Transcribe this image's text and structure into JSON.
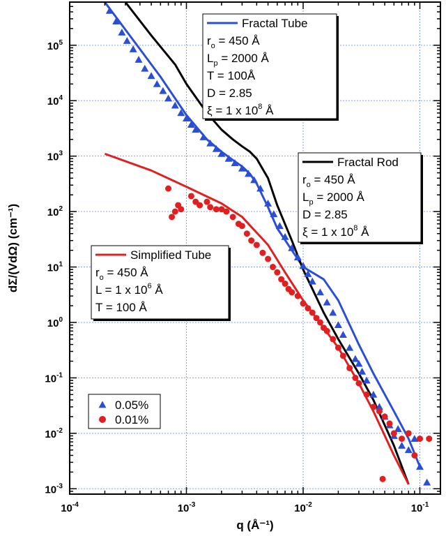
{
  "chart_data": {
    "type": "scatter",
    "x_scale": "log",
    "y_scale": "log",
    "xlim": [
      0.0001,
      0.15
    ],
    "ylim": [
      0.0008,
      600000
    ],
    "grid": true,
    "xlabel": "q (Å⁻¹)",
    "ylabel": "dΣ/(VdΩ) (cm⁻¹)",
    "x_ticks": [
      {
        "value": 0.0001,
        "base": "10",
        "exp": "-4"
      },
      {
        "value": 0.001,
        "base": "10",
        "exp": "-3"
      },
      {
        "value": 0.01,
        "base": "10",
        "exp": "-2"
      },
      {
        "value": 0.1,
        "base": "10",
        "exp": "-1"
      }
    ],
    "y_ticks": [
      {
        "value": 0.001,
        "base": "10",
        "exp": "-3"
      },
      {
        "value": 0.01,
        "base": "10",
        "exp": "-2"
      },
      {
        "value": 0.1,
        "base": "10",
        "exp": "-1"
      },
      {
        "value": 1,
        "base": "10",
        "exp": "0"
      },
      {
        "value": 10,
        "base": "10",
        "exp": "1"
      },
      {
        "value": 100,
        "base": "10",
        "exp": "2"
      },
      {
        "value": 1000,
        "base": "10",
        "exp": "3"
      },
      {
        "value": 10000,
        "base": "10",
        "exp": "4"
      },
      {
        "value": 100000,
        "base": "10",
        "exp": "5"
      }
    ],
    "series": [
      {
        "name": "Fractal Tube",
        "kind": "line",
        "color": "#2a4fd6",
        "x": [
          0.0002,
          0.0004,
          0.0006,
          0.0008,
          0.001,
          0.0015,
          0.002,
          0.0025,
          0.003,
          0.0035,
          0.004,
          0.005,
          0.006,
          0.008,
          0.01,
          0.015,
          0.02,
          0.03,
          0.04,
          0.06,
          0.08,
          0.1
        ],
        "y": [
          600000,
          85000,
          27000,
          11000,
          5500,
          2000,
          1200,
          850,
          650,
          480,
          320,
          120,
          50,
          20,
          10,
          6,
          2.5,
          0.4,
          0.12,
          0.025,
          0.008,
          0.0025
        ]
      },
      {
        "name": "Fractal Rod",
        "kind": "line",
        "color": "#000000",
        "x": [
          0.0003,
          0.0005,
          0.0008,
          0.001,
          0.0015,
          0.002,
          0.0025,
          0.003,
          0.0035,
          0.004,
          0.005,
          0.006,
          0.008,
          0.01,
          0.015,
          0.02,
          0.03,
          0.04,
          0.06,
          0.08
        ],
        "y": [
          600000,
          150000,
          45000,
          20000,
          6000,
          3000,
          2000,
          1500,
          1200,
          900,
          400,
          130,
          30,
          9,
          1.5,
          0.5,
          0.12,
          0.04,
          0.006,
          0.0012
        ]
      },
      {
        "name": "Simplified Tube",
        "kind": "line",
        "color": "#e02020",
        "x": [
          0.0002,
          0.0005,
          0.001,
          0.002,
          0.003,
          0.005,
          0.007,
          0.01,
          0.015,
          0.02,
          0.03,
          0.04,
          0.06,
          0.08
        ],
        "y": [
          1100,
          550,
          280,
          140,
          80,
          25,
          8,
          2.5,
          0.8,
          0.35,
          0.08,
          0.025,
          0.004,
          0.0012
        ]
      },
      {
        "name": "0.05%",
        "kind": "markers",
        "marker": "triangle",
        "color": "#2a4fd6",
        "x": [
          0.00022,
          0.00025,
          0.00028,
          0.00031,
          0.00035,
          0.00039,
          0.00044,
          0.0005,
          0.00056,
          0.00063,
          0.0007,
          0.0008,
          0.0009,
          0.001,
          0.0011,
          0.0012,
          0.0014,
          0.0016,
          0.0018,
          0.002,
          0.0023,
          0.0026,
          0.003,
          0.0034,
          0.0038,
          0.0043,
          0.005,
          0.0056,
          0.0063,
          0.007,
          0.008,
          0.009,
          0.01,
          0.011,
          0.012,
          0.014,
          0.016,
          0.018,
          0.02,
          0.022,
          0.025,
          0.028,
          0.03,
          0.032,
          0.035,
          0.04,
          0.045,
          0.05,
          0.055,
          0.06,
          0.065,
          0.07,
          0.08,
          0.09,
          0.1,
          0.115
        ],
        "y": [
          420000,
          270000,
          170000,
          120000,
          85000,
          55000,
          38000,
          28000,
          20000,
          15000,
          11000,
          8200,
          6000,
          4800,
          3700,
          3000,
          2200,
          1700,
          1350,
          1100,
          900,
          750,
          600,
          480,
          370,
          260,
          140,
          90,
          55,
          35,
          22,
          15,
          10.5,
          7.5,
          5.5,
          3.5,
          2.3,
          1.5,
          0.9,
          0.6,
          0.35,
          0.22,
          0.18,
          0.13,
          0.09,
          0.05,
          0.03,
          0.02,
          0.014,
          0.009,
          0.012,
          0.006,
          0.005,
          0.008,
          0.0025,
          0.0013
        ]
      },
      {
        "name": "0.01%",
        "kind": "markers",
        "marker": "circle",
        "color": "#e02020",
        "x": [
          0.0007,
          0.00075,
          0.0008,
          0.00085,
          0.0009,
          0.0011,
          0.0012,
          0.0013,
          0.0015,
          0.0016,
          0.0018,
          0.002,
          0.0022,
          0.0025,
          0.0028,
          0.003,
          0.0033,
          0.0036,
          0.004,
          0.0045,
          0.005,
          0.0055,
          0.006,
          0.0065,
          0.007,
          0.0075,
          0.008,
          0.009,
          0.01,
          0.011,
          0.012,
          0.013,
          0.014,
          0.015,
          0.016,
          0.018,
          0.02,
          0.022,
          0.025,
          0.028,
          0.03,
          0.035,
          0.04,
          0.045,
          0.05,
          0.055,
          0.06,
          0.07,
          0.08,
          0.09,
          0.1,
          0.12,
          0.048
        ],
        "y": [
          260,
          80,
          100,
          130,
          110,
          190,
          150,
          130,
          150,
          120,
          110,
          110,
          100,
          80,
          60,
          55,
          40,
          30,
          25,
          18,
          14,
          10,
          8,
          6,
          5,
          4,
          3.5,
          3,
          2.2,
          1.8,
          1.5,
          1.2,
          1,
          0.8,
          0.7,
          0.5,
          0.35,
          0.25,
          0.15,
          0.1,
          0.08,
          0.05,
          0.03,
          0.025,
          0.02,
          0.015,
          0.01,
          0.008,
          0.01,
          0.004,
          0.008,
          0.008,
          0.0015
        ]
      }
    ],
    "annotations": [
      {
        "id": "fractal-tube",
        "color": "#2a4fd6",
        "title": "Fractal Tube",
        "lines": [
          [
            "r",
            "o",
            "",
            " = 450 Å"
          ],
          [
            "L",
            "p",
            "",
            " = 2000 Å"
          ],
          [
            "T = 100Å",
            "",
            "",
            ""
          ],
          [
            "D = 2.85",
            "",
            "",
            ""
          ],
          [
            "ξ = 1 x 10",
            "",
            "8",
            " Å"
          ]
        ]
      },
      {
        "id": "fractal-rod",
        "color": "#000000",
        "title": "Fractal Rod",
        "lines": [
          [
            "r",
            "o",
            "",
            " = 450 Å"
          ],
          [
            "L",
            "p",
            "",
            " = 2000 Å"
          ],
          [
            "D = 2.85",
            "",
            "",
            ""
          ],
          [
            "ξ = 1 x 10",
            "",
            "8",
            " Å"
          ]
        ]
      },
      {
        "id": "simplified-tube",
        "color": "#e02020",
        "title": "Simplified Tube",
        "lines": [
          [
            "r",
            "o",
            "",
            " = 450 Å"
          ],
          [
            "L = 1 x 10",
            "",
            "6",
            " Å"
          ],
          [
            "T = 100 Å",
            "",
            "",
            ""
          ]
        ]
      }
    ],
    "legend": {
      "placement": "lower-left",
      "entries": [
        {
          "label": "0.05%",
          "marker": "triangle",
          "color": "#2a4fd6"
        },
        {
          "label": "0.01%",
          "marker": "circle",
          "color": "#e02020"
        }
      ]
    }
  }
}
